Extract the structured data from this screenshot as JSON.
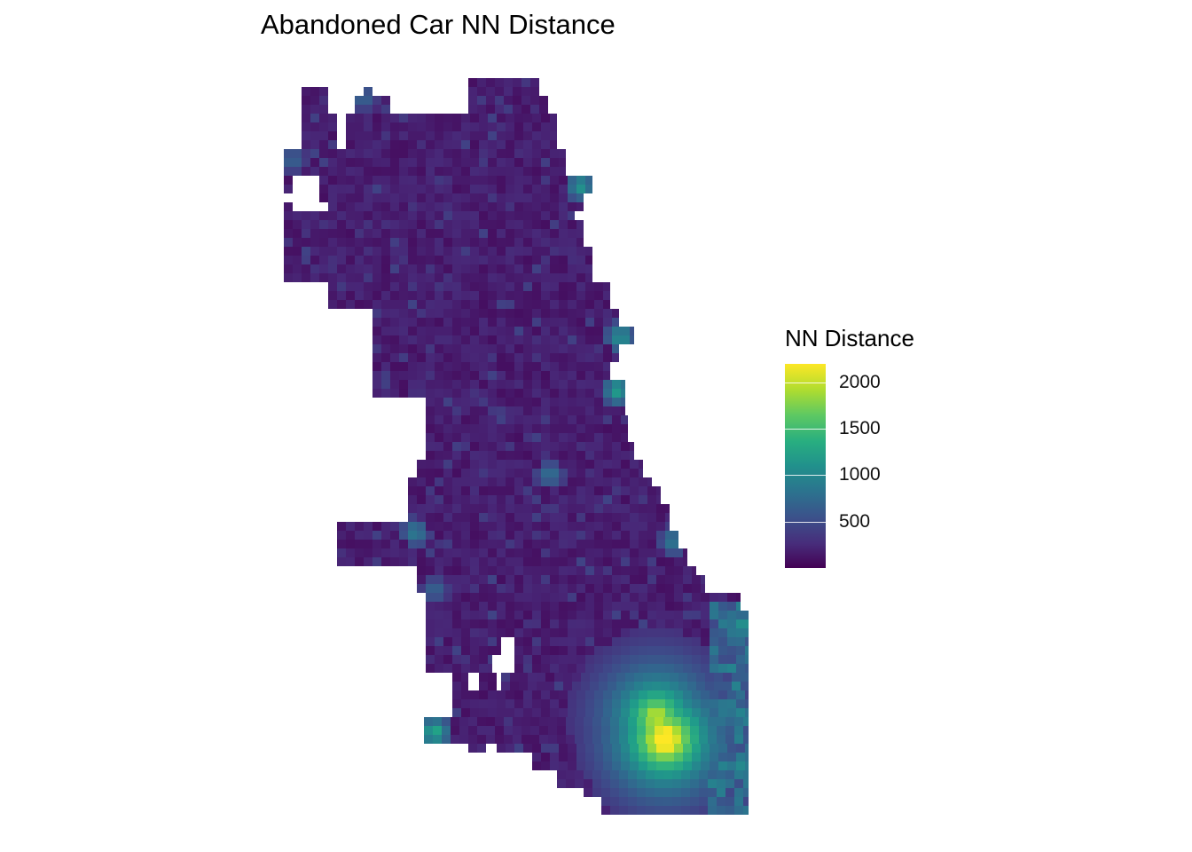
{
  "chart_data": {
    "type": "heatmap",
    "title": "Abandoned Car NN Distance",
    "legend": {
      "title": "NN Distance",
      "position": "right",
      "ticks": [
        "500",
        "1000",
        "1500",
        "2000"
      ],
      "tick_values": [
        500,
        1000,
        1500,
        2000
      ],
      "range": [
        0,
        2200
      ],
      "colormap": "viridis"
    },
    "grid": false,
    "axes": "none",
    "colors": {
      "low": "#440154",
      "mid": "#21918c",
      "high": "#fde725"
    }
  }
}
